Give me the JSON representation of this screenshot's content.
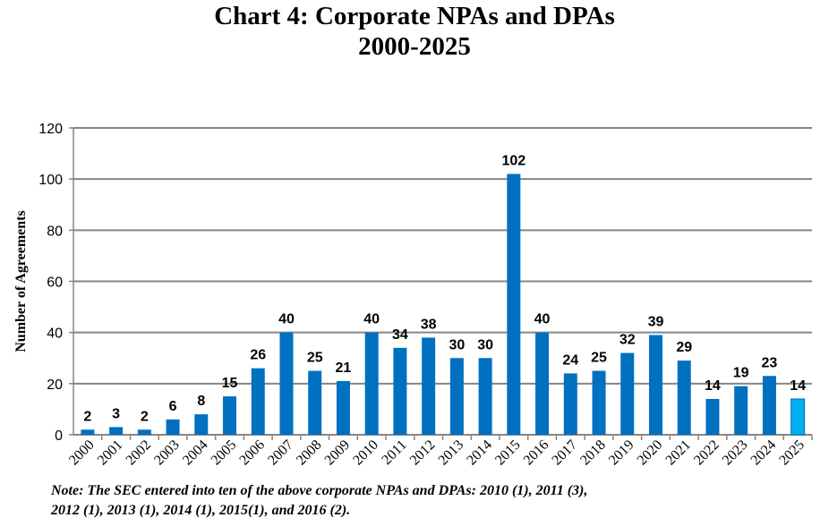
{
  "chart_data": {
    "type": "bar",
    "title": "Chart 4: Corporate NPAs and DPAs",
    "subtitle": "2000-2025",
    "xlabel": "",
    "ylabel": "Number of Agreements",
    "ylim": [
      0,
      120
    ],
    "yticks": [
      0,
      20,
      40,
      60,
      80,
      100,
      120
    ],
    "grid": true,
    "categories": [
      "2000",
      "2001",
      "2002",
      "2003",
      "2004",
      "2005",
      "2006",
      "2007",
      "2008",
      "2009",
      "2010",
      "2011",
      "2012",
      "2013",
      "2014",
      "2015",
      "2016",
      "2017",
      "2018",
      "2019",
      "2020",
      "2021",
      "2022",
      "2023",
      "2024",
      "2025"
    ],
    "values": [
      2,
      3,
      2,
      6,
      8,
      15,
      26,
      40,
      25,
      21,
      40,
      34,
      38,
      30,
      30,
      102,
      40,
      24,
      25,
      32,
      39,
      29,
      14,
      19,
      23,
      14
    ],
    "colors": {
      "bar": "#0070C0",
      "highlight_bar": "#00B0F0",
      "grid": "#868686"
    },
    "highlight_category": "2025",
    "note_line1": "Note: The SEC entered into ten of the above corporate NPAs and DPAs: 2010 (1), 2011 (3),",
    "note_line2": "2012 (1), 2013 (1), 2014 (1), 2015(1), and 2016 (2)."
  }
}
